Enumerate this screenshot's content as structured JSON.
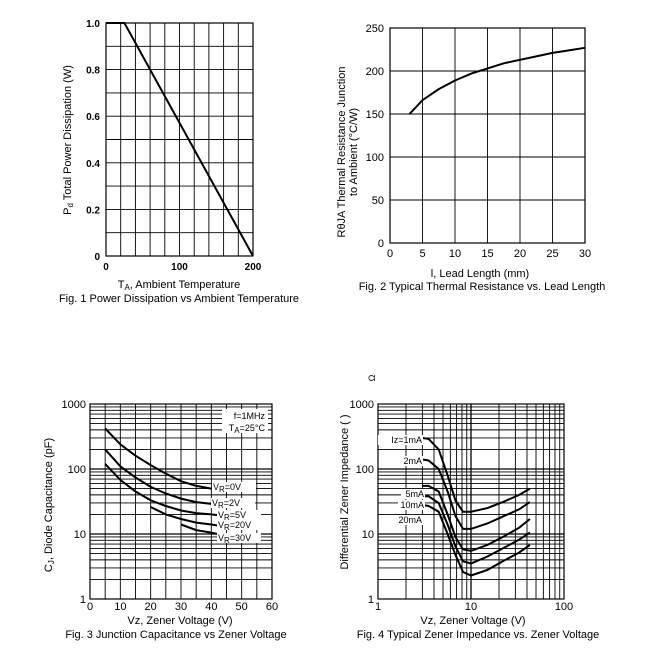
{
  "chart_data": [
    {
      "type": "line",
      "title": "Fig. 1 Power Dissipation vs Ambient Temperature",
      "xlabel": "TA, Ambient Temperature",
      "ylabel": "Pd, Total Power Dissipation (W)",
      "xlim": [
        0,
        200
      ],
      "ylim": [
        0,
        1.0
      ],
      "x_ticks": [
        "0",
        "100",
        "200"
      ],
      "y_ticks": [
        "0",
        "0.2",
        "0.4",
        "0.6",
        "0.8",
        "1.0"
      ],
      "grid": true,
      "series": [
        {
          "name": "Pd",
          "x": [
            0,
            25,
            200
          ],
          "y": [
            1.0,
            1.0,
            0.0
          ]
        }
      ]
    },
    {
      "type": "line",
      "title": "Fig. 2 Typical Thermal Resistance vs. Lead Length",
      "xlabel": "l, Lead Length (mm)",
      "ylabel": "RθJA Thermal Resistance Junction to Ambient (°C/W)",
      "xlim": [
        0,
        30
      ],
      "ylim": [
        0,
        250
      ],
      "x_ticks": [
        "0",
        "5",
        "10",
        "15",
        "20",
        "25",
        "30"
      ],
      "y_ticks": [
        "0",
        "50",
        "100",
        "150",
        "200",
        "250"
      ],
      "grid": true,
      "series": [
        {
          "name": "RθJA",
          "x": [
            3,
            5,
            7.5,
            10,
            12.5,
            15,
            17.5,
            20,
            22.5,
            25,
            27.5,
            30
          ],
          "y": [
            150,
            166,
            179,
            189,
            197,
            203,
            209,
            213,
            217,
            221,
            224,
            227
          ]
        }
      ]
    },
    {
      "type": "line",
      "title": "Fig. 3 Junction Capacitance vs Zener Voltage",
      "xlabel": "Vz, Zener Voltage (V)",
      "ylabel": "Cj, Diode Capacitance (pF)",
      "xlim": [
        0,
        60
      ],
      "ylim": [
        1,
        1000
      ],
      "y_scale": "log",
      "x_ticks": [
        "0",
        "10",
        "20",
        "30",
        "40",
        "50",
        "60"
      ],
      "y_ticks": [
        "1",
        "10",
        "100",
        "1000"
      ],
      "grid": true,
      "annotations": [
        "f=1MHz",
        "TA=25°C"
      ],
      "series": [
        {
          "name": "VR=0V",
          "x": [
            5,
            10,
            15,
            20,
            25,
            30,
            35,
            40
          ],
          "y": [
            420,
            240,
            160,
            115,
            85,
            65,
            55,
            50
          ]
        },
        {
          "name": "VR=2V",
          "x": [
            5,
            10,
            15,
            20,
            25,
            30,
            35,
            40,
            42
          ],
          "y": [
            200,
            110,
            74,
            53,
            42,
            35,
            31,
            29,
            28
          ]
        },
        {
          "name": "VR=5V",
          "x": [
            5,
            10,
            15,
            20,
            25,
            30,
            35,
            40,
            42
          ],
          "y": [
            120,
            68,
            45,
            33,
            27,
            23,
            21,
            20,
            19.5
          ]
        },
        {
          "name": "VR=20V",
          "x": [
            20,
            25,
            30,
            35,
            40,
            42
          ],
          "y": [
            26,
            20,
            17,
            15,
            14,
            13.5
          ]
        },
        {
          "name": "VR=30V",
          "x": [
            30,
            35,
            40,
            42
          ],
          "y": [
            14,
            11.5,
            10.5,
            10
          ]
        }
      ]
    },
    {
      "type": "line",
      "title": "Fig. 4 Typical Zener Impedance vs. Zener Voltage",
      "xlabel": "Vz, Zener Voltage (V)",
      "ylabel": "Differential Zener Impedance ( )",
      "unit_symbol": "Ω",
      "xlim": [
        1,
        100
      ],
      "ylim": [
        1,
        1000
      ],
      "x_scale": "log",
      "y_scale": "log",
      "x_ticks": [
        "1",
        "10",
        "100"
      ],
      "y_ticks": [
        "1",
        "10",
        "100",
        "1000"
      ],
      "grid": true,
      "series": [
        {
          "name": "Iz=1mA",
          "x": [
            3.0,
            3.5,
            4.5,
            5.6,
            6.8,
            8.2,
            10,
            15,
            22,
            33,
            43
          ],
          "y": [
            300,
            290,
            200,
            80,
            33,
            22,
            22,
            25,
            31,
            40,
            50
          ]
        },
        {
          "name": "2mA",
          "x": [
            3.0,
            3.5,
            4.5,
            5.6,
            6.8,
            8.2,
            10,
            15,
            22,
            33,
            43
          ],
          "y": [
            140,
            135,
            100,
            45,
            19,
            12,
            12,
            14.5,
            18.5,
            24,
            31
          ]
        },
        {
          "name": "5mA",
          "x": [
            3.0,
            3.5,
            4.5,
            5.6,
            6.8,
            8.2,
            10,
            15,
            22,
            33,
            43
          ],
          "y": [
            55,
            55,
            45,
            20,
            9,
            5.8,
            5.5,
            6.8,
            9,
            12.5,
            17
          ]
        },
        {
          "name": "10mA",
          "x": [
            3.0,
            3.5,
            4.5,
            5.6,
            6.8,
            8.2,
            10,
            15,
            22,
            33,
            43
          ],
          "y": [
            38,
            38,
            30,
            14,
            6.5,
            3.8,
            3.5,
            4.5,
            6,
            8.2,
            10.5
          ]
        },
        {
          "name": "20mA",
          "x": [
            3.0,
            3.5,
            4.5,
            5.6,
            6.8,
            8.2,
            10,
            15,
            22,
            33,
            43
          ],
          "y": [
            28,
            27,
            22,
            10,
            4.8,
            2.6,
            2.3,
            2.8,
            3.8,
            5.2,
            6.8
          ]
        }
      ]
    }
  ]
}
